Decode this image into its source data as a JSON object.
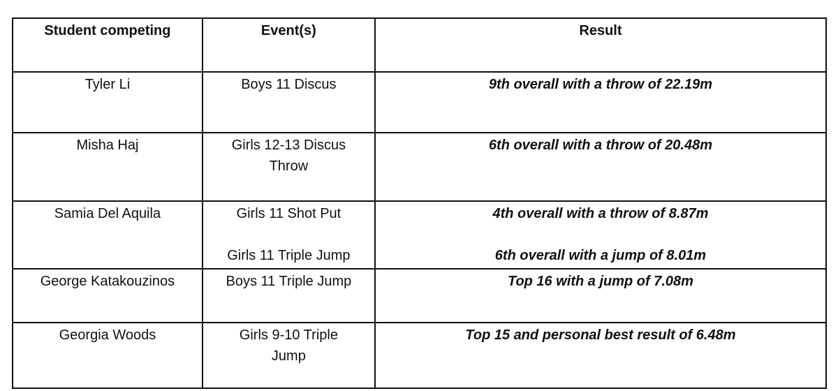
{
  "headers": [
    "Student competing",
    "Event(s)",
    "Result"
  ],
  "rows": [
    {
      "student": "Tyler Li",
      "events": [
        "Boys 11 Discus"
      ],
      "results": [
        "9th overall with a throw of 22.19m"
      ]
    },
    {
      "student": "Misha Haj",
      "events": [
        "Girls 12-13 Discus Throw"
      ],
      "results": [
        "6th overall with a throw of 20.48m"
      ]
    },
    {
      "student": "Samia Del Aquila",
      "events": [
        "Girls 11 Shot Put",
        "Girls 11 Triple Jump"
      ],
      "results": [
        "4th overall with a throw of 8.87m",
        "6th overall with a jump of 8.01m"
      ]
    },
    {
      "student": "George Katakouzinos",
      "events": [
        "Boys 11 Triple Jump"
      ],
      "results": [
        "Top 16 with a jump of 7.08m"
      ]
    },
    {
      "student": "Georgia Woods",
      "events": [
        "Girls 9-10 Triple Jump"
      ],
      "results": [
        "Top 15 and personal best result of 6.48m"
      ]
    }
  ]
}
